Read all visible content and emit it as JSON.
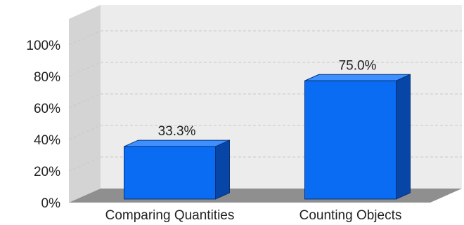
{
  "chart_data": {
    "type": "bar",
    "categories": [
      "Comparing Quantities",
      "Counting Objects"
    ],
    "values": [
      33.3,
      75.0
    ],
    "data_labels": [
      "33.3%",
      "75.0%"
    ],
    "title": "",
    "xlabel": "",
    "ylabel": "",
    "ylim": [
      0,
      100
    ],
    "y_ticks": [
      0,
      20,
      40,
      60,
      80,
      100
    ],
    "y_tick_labels": [
      "0%",
      "20%",
      "40%",
      "60%",
      "80%",
      "100%"
    ],
    "grid": true,
    "legend": "none",
    "style": "3d"
  },
  "colors": {
    "bar_front": "#0a6cf2",
    "bar_top": "#3f90ff",
    "bar_side": "#0746a6",
    "back_wall": "#ececec",
    "side_wall": "#d4d4d4",
    "floor": "#8f8f8f",
    "gridline": "#c9c9c9"
  }
}
